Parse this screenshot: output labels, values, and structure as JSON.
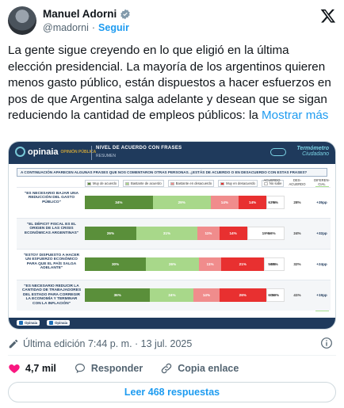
{
  "author": {
    "name": "Manuel Adorni",
    "handle": "@madorni",
    "separator": "·",
    "follow_label": "Seguir"
  },
  "post": {
    "text": "La gente sigue creyendo en lo que eligió en la última elección presidencial. La mayoría de los argentinos quieren menos gasto público, están dispuestos a hacer esfuerzos en pos de que Argentina salga adelante y desean que se sigan reduciendo la cantidad de empleos públicos: la",
    "show_more": "Mostrar más"
  },
  "media": {
    "brand": "opinaia",
    "brand_sub": "OPINIÓN PÚBLICA",
    "title": "NIVEL DE ACUERDO CON FRASES",
    "subtitle": "RESUMEN",
    "thermo_1": "Termómetro",
    "thermo_2": "Ciudadano",
    "question": "A CONTINUACIÓN APARECEN ALGUNAS FRASES QUE NOS COMENTARON OTRAS PERSONAS. ¿ESTÁS DE ACUERDO O EN DESACUERDO CON ESTAS FRASES?",
    "legend": [
      {
        "label": "Muy de acuerdo",
        "color": "#5a8f3a"
      },
      {
        "label": "Bastante de acuerdo",
        "color": "#a8d88a"
      },
      {
        "label": "Bastante en desacuerdo",
        "color": "#f08c8c"
      },
      {
        "label": "Muy en desacuerdo",
        "color": "#e83030"
      },
      {
        "label": "No sabe",
        "color": "#ffffff"
      }
    ],
    "col_acuerdo": "ACUERDO",
    "col_desacuerdo": "DES-ACUERDO",
    "col_diferencia": "DIFEREN-CIAL",
    "rows": [
      {
        "label": "\"ES NECESARIO BAJAR UNA REDUCCIÓN DEL GASTO PÚBLICO\"",
        "segs": [
          "34%",
          "29%",
          "14%",
          "14%",
          "9%"
        ],
        "acuerdo": "63%",
        "desacuerdo": "28%",
        "diff": "+35pp"
      },
      {
        "label": "\"EL DÉFICIT FISCAL ES EL ORIGEN DE LAS CRISIS ECONÓMICAS ARGENTINAS\"",
        "segs": [
          "26%",
          "31%",
          "11%",
          "14%",
          "19%"
        ],
        "acuerdo": "56%",
        "desacuerdo": "24%",
        "diff": "+32pp"
      },
      {
        "label": "\"ESTOY DISPUESTO A HACER UN ESFUERZO ECONÓMICO PARA QUE EL PAÍS SALGA ADELANTE\"",
        "segs": [
          "30%",
          "26%",
          "11%",
          "21%",
          "10%"
        ],
        "acuerdo": "56%",
        "desacuerdo": "32%",
        "diff": "+24pp"
      },
      {
        "label": "\"ES NECESARIO REDUCIR LA CANTIDAD DE TRABAJADORES DEL ESTADO PARA CORREGIR LA ECONOMÍA Y TERMINAR CON LA INFLACIÓN\"",
        "segs": [
          "36%",
          "24%",
          "14%",
          "26%",
          "10%"
        ],
        "acuerdo": "60%",
        "desacuerdo": "41%",
        "diff": "+19pp"
      }
    ],
    "social_1": "Opinaia",
    "social_2": "Opinaia"
  },
  "meta": {
    "edited": "Última edición 7:44 p. m. · 13 jul. 2025"
  },
  "actions": {
    "likes": "4,7 mil",
    "reply": "Responder",
    "copy": "Copia enlace"
  },
  "replies_button": "Leer 468 respuestas"
}
